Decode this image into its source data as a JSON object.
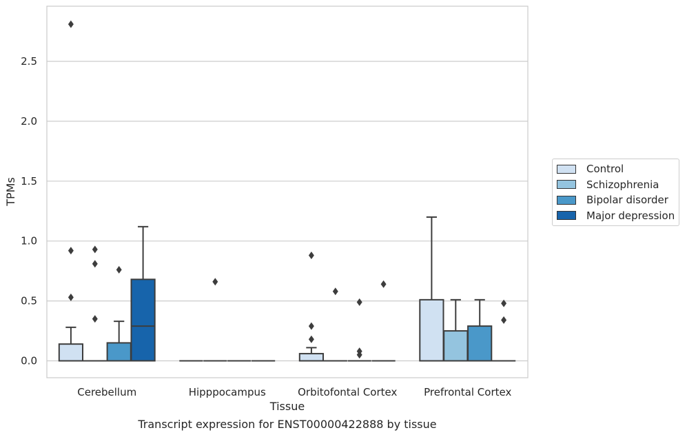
{
  "chart_data": {
    "type": "box",
    "xlabel": "Tissue",
    "ylabel": "TPMs",
    "ylim": [
      -0.14,
      2.96
    ],
    "yticks": [
      0.0,
      0.5,
      1.0,
      1.5,
      2.0,
      2.5
    ],
    "ytick_labels": [
      "0.0",
      "0.5",
      "1.0",
      "1.5",
      "2.0",
      "2.5"
    ],
    "grid": "horizontal",
    "legend_position": "right",
    "categories": [
      "Cerebellum",
      "Hipppocampus",
      "Orbitofontal Cortex",
      "Prefrontal Cortex"
    ],
    "series": [
      {
        "name": "Control",
        "color": "#d0e1f2",
        "boxes": [
          {
            "q1": 0.0,
            "median": 0.0,
            "q3": 0.14,
            "whisker_low": 0.0,
            "whisker_high": 0.28,
            "outliers": [
              0.53,
              0.92,
              2.81
            ]
          },
          {
            "q1": 0.0,
            "median": 0.0,
            "q3": 0.0,
            "whisker_low": 0.0,
            "whisker_high": 0.0,
            "outliers": []
          },
          {
            "q1": 0.0,
            "median": 0.0,
            "q3": 0.06,
            "whisker_low": 0.0,
            "whisker_high": 0.11,
            "outliers": [
              0.18,
              0.29,
              0.88
            ]
          },
          {
            "q1": 0.0,
            "median": 0.0,
            "q3": 0.51,
            "whisker_low": 0.0,
            "whisker_high": 1.2,
            "outliers": []
          }
        ]
      },
      {
        "name": "Schizophrenia",
        "color": "#94c4df",
        "boxes": [
          {
            "q1": 0.0,
            "median": 0.0,
            "q3": 0.0,
            "whisker_low": 0.0,
            "whisker_high": 0.0,
            "outliers": [
              0.35,
              0.81,
              0.93
            ]
          },
          {
            "q1": 0.0,
            "median": 0.0,
            "q3": 0.0,
            "whisker_low": 0.0,
            "whisker_high": 0.0,
            "outliers": [
              0.66
            ]
          },
          {
            "q1": 0.0,
            "median": 0.0,
            "q3": 0.0,
            "whisker_low": 0.0,
            "whisker_high": 0.0,
            "outliers": [
              0.58
            ]
          },
          {
            "q1": 0.0,
            "median": 0.0,
            "q3": 0.25,
            "whisker_low": 0.0,
            "whisker_high": 0.51,
            "outliers": []
          }
        ]
      },
      {
        "name": "Bipolar disorder",
        "color": "#4a98c9",
        "boxes": [
          {
            "q1": 0.0,
            "median": 0.0,
            "q3": 0.15,
            "whisker_low": 0.0,
            "whisker_high": 0.33,
            "outliers": [
              0.76
            ]
          },
          {
            "q1": 0.0,
            "median": 0.0,
            "q3": 0.0,
            "whisker_low": 0.0,
            "whisker_high": 0.0,
            "outliers": []
          },
          {
            "q1": 0.0,
            "median": 0.0,
            "q3": 0.0,
            "whisker_low": 0.0,
            "whisker_high": 0.0,
            "outliers": [
              0.05,
              0.08,
              0.49
            ]
          },
          {
            "q1": 0.0,
            "median": 0.0,
            "q3": 0.29,
            "whisker_low": 0.0,
            "whisker_high": 0.51,
            "outliers": []
          }
        ]
      },
      {
        "name": "Major depression",
        "color": "#1764ab",
        "boxes": [
          {
            "q1": 0.0,
            "median": 0.29,
            "q3": 0.68,
            "whisker_low": 0.0,
            "whisker_high": 1.12,
            "outliers": []
          },
          {
            "q1": 0.0,
            "median": 0.0,
            "q3": 0.0,
            "whisker_low": 0.0,
            "whisker_high": 0.0,
            "outliers": []
          },
          {
            "q1": 0.0,
            "median": 0.0,
            "q3": 0.0,
            "whisker_low": 0.0,
            "whisker_high": 0.0,
            "outliers": [
              0.64
            ]
          },
          {
            "q1": 0.0,
            "median": 0.0,
            "q3": 0.0,
            "whisker_low": 0.0,
            "whisker_high": 0.0,
            "outliers": [
              0.34,
              0.48
            ]
          }
        ]
      }
    ]
  },
  "caption": "Transcript expression for ENST00000422888 by tissue"
}
